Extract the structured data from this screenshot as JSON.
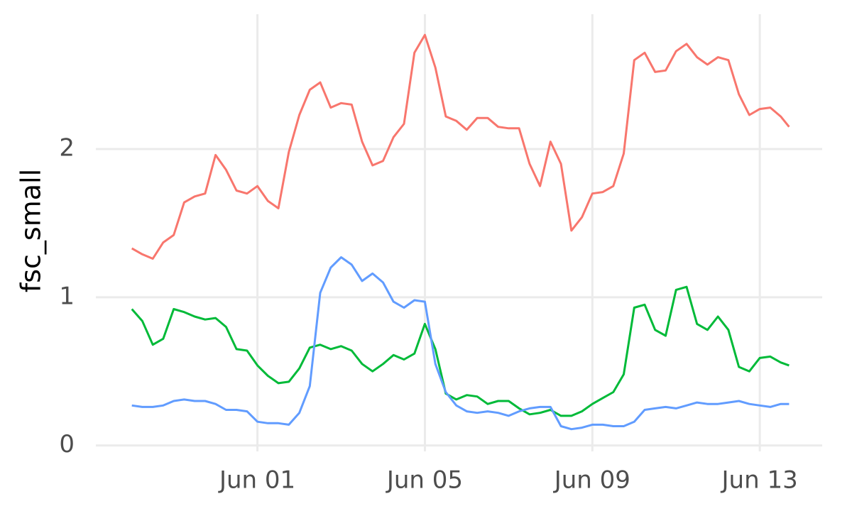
{
  "chart_data": {
    "type": "line",
    "ylabel": "fsc_small",
    "x": [
      -2,
      -1.75,
      -1.5,
      -1.25,
      -1,
      -0.75,
      -0.5,
      -0.25,
      0,
      0.25,
      0.5,
      0.75,
      1,
      1.25,
      1.5,
      1.75,
      2,
      2.25,
      2.5,
      2.75,
      3,
      3.25,
      3.5,
      3.75,
      4,
      4.25,
      4.5,
      4.75,
      5,
      5.25,
      5.5,
      5.75,
      6,
      6.25,
      6.5,
      6.75,
      7,
      7.25,
      7.5,
      7.75,
      8,
      8.25,
      8.5,
      8.75,
      9,
      9.25,
      9.5,
      9.75,
      10,
      10.25,
      10.5,
      10.75,
      11,
      11.25,
      11.5,
      11.75,
      12,
      12.25,
      12.5,
      12.75,
      13,
      13.25,
      13.5,
      13.7
    ],
    "series": [
      {
        "color": "#F8766D",
        "values": [
          1.33,
          1.29,
          1.26,
          1.37,
          1.42,
          1.64,
          1.68,
          1.7,
          1.96,
          1.86,
          1.72,
          1.7,
          1.75,
          1.65,
          1.6,
          1.98,
          2.23,
          2.4,
          2.45,
          2.28,
          2.31,
          2.3,
          2.05,
          1.89,
          1.92,
          2.08,
          2.17,
          2.65,
          2.77,
          2.55,
          2.22,
          2.19,
          2.13,
          2.21,
          2.21,
          2.15,
          2.14,
          2.14,
          1.9,
          1.75,
          2.05,
          1.9,
          1.45,
          1.54,
          1.7,
          1.71,
          1.75,
          1.97,
          2.6,
          2.65,
          2.52,
          2.53,
          2.66,
          2.71,
          2.62,
          2.57,
          2.62,
          2.6,
          2.37,
          2.23,
          2.27,
          2.28,
          2.22,
          2.15
        ]
      },
      {
        "color": "#00BA38",
        "values": [
          0.92,
          0.84,
          0.68,
          0.72,
          0.92,
          0.9,
          0.87,
          0.85,
          0.86,
          0.8,
          0.65,
          0.64,
          0.54,
          0.47,
          0.42,
          0.43,
          0.52,
          0.66,
          0.68,
          0.65,
          0.67,
          0.64,
          0.55,
          0.5,
          0.55,
          0.61,
          0.58,
          0.62,
          0.82,
          0.65,
          0.35,
          0.31,
          0.34,
          0.33,
          0.28,
          0.3,
          0.3,
          0.25,
          0.21,
          0.22,
          0.24,
          0.2,
          0.2,
          0.23,
          0.28,
          0.32,
          0.36,
          0.48,
          0.93,
          0.95,
          0.78,
          0.74,
          1.05,
          1.07,
          0.82,
          0.78,
          0.87,
          0.78,
          0.53,
          0.5,
          0.59,
          0.6,
          0.56,
          0.54
        ]
      },
      {
        "color": "#619CFF",
        "values": [
          0.27,
          0.26,
          0.26,
          0.27,
          0.3,
          0.31,
          0.3,
          0.3,
          0.28,
          0.24,
          0.24,
          0.23,
          0.16,
          0.15,
          0.15,
          0.14,
          0.22,
          0.4,
          1.03,
          1.2,
          1.27,
          1.22,
          1.11,
          1.16,
          1.1,
          0.97,
          0.93,
          0.98,
          0.97,
          0.55,
          0.36,
          0.27,
          0.23,
          0.22,
          0.23,
          0.22,
          0.2,
          0.23,
          0.25,
          0.26,
          0.26,
          0.13,
          0.11,
          0.12,
          0.14,
          0.14,
          0.13,
          0.13,
          0.16,
          0.24,
          0.25,
          0.26,
          0.25,
          0.27,
          0.29,
          0.28,
          0.28,
          0.29,
          0.3,
          0.28,
          0.27,
          0.26,
          0.28,
          0.28
        ]
      }
    ],
    "xlim": [
      -2.86,
      14.49
    ],
    "xticks": [
      {
        "value": 1,
        "label": "Jun 01"
      },
      {
        "value": 5,
        "label": "Jun 05"
      },
      {
        "value": 9,
        "label": "Jun 09"
      },
      {
        "value": 13,
        "label": "Jun 13"
      }
    ],
    "ylim": [
      -0.04,
      2.91
    ],
    "yticks": [
      0,
      1,
      2
    ],
    "grid": true
  }
}
